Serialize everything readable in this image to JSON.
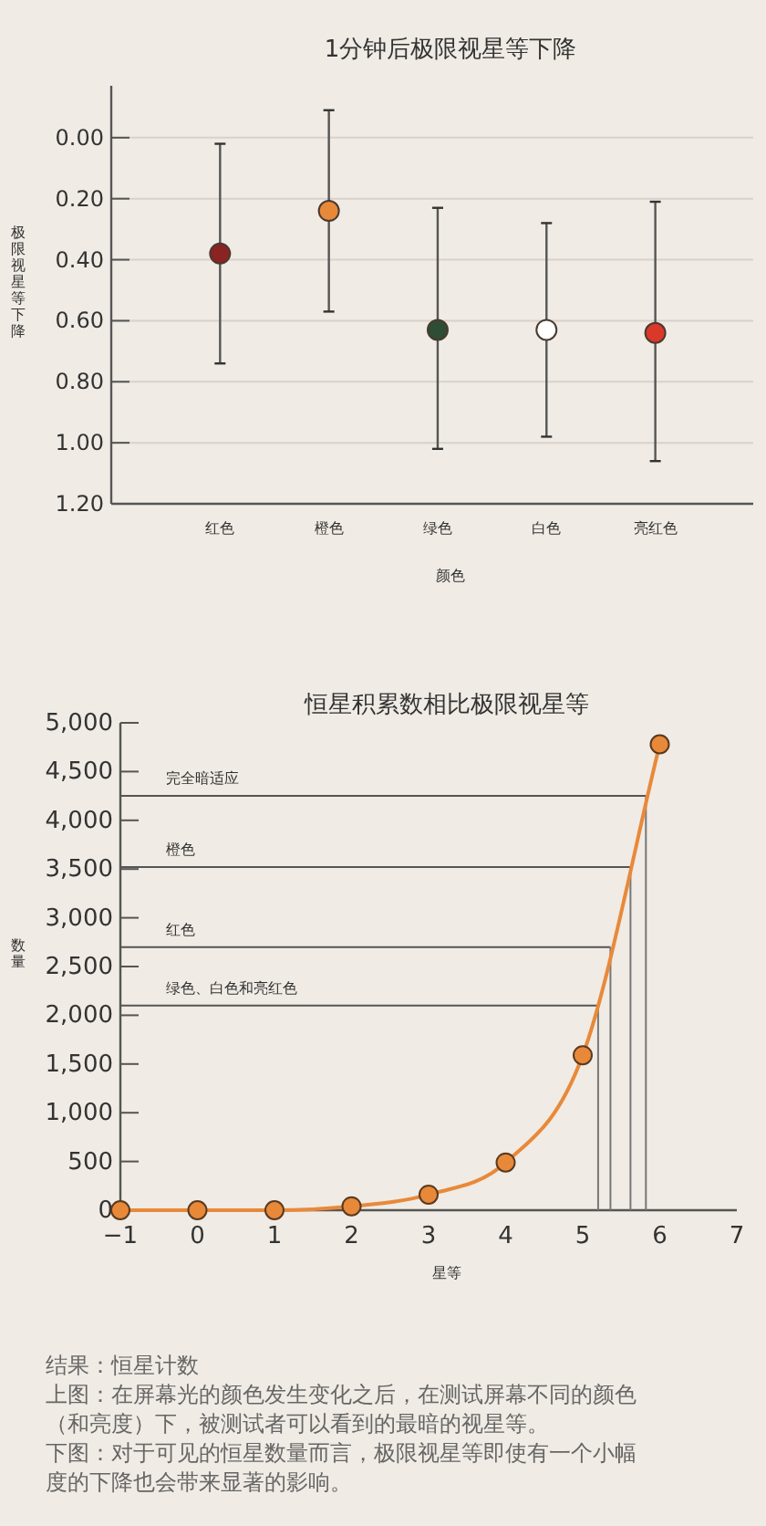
{
  "chart_data": [
    {
      "type": "scatter",
      "title": "1分钟后极限视星等下降",
      "xlabel": "颜色",
      "ylabel": "极限视星等下降",
      "categories": [
        "红色",
        "橙色",
        "绿色",
        "白色",
        "亮红色"
      ],
      "values": [
        0.38,
        0.24,
        0.63,
        0.63,
        0.64
      ],
      "colors": [
        "#8b2323",
        "#e8893a",
        "#2e4d35",
        "#ffffff",
        "#d9382a"
      ],
      "errors": [
        [
          0.02,
          0.74
        ],
        [
          -0.09,
          0.57
        ],
        [
          0.23,
          1.02
        ],
        [
          0.28,
          0.98
        ],
        [
          0.21,
          1.06
        ]
      ],
      "ylim": [
        1.2,
        -0.17
      ],
      "yticks": [
        {
          "value": 0,
          "label": "0.00"
        },
        {
          "value": 0.2,
          "label": "0.20"
        },
        {
          "value": 0.4,
          "label": "0.40"
        },
        {
          "value": 0.6,
          "label": "0.60"
        },
        {
          "value": 0.8,
          "label": "0.80"
        },
        {
          "value": 1.0,
          "label": "1.00"
        },
        {
          "value": 1.2,
          "label": "1.20"
        }
      ],
      "grid": "y"
    },
    {
      "type": "line",
      "title": "恒星积累数相比极限视星等",
      "xlabel": "星等",
      "ylabel": "数量",
      "x": [
        -1,
        0,
        1,
        2,
        3,
        4,
        5,
        6
      ],
      "series": [
        {
          "color": "#e8893a",
          "values": [
            0,
            0,
            0,
            40,
            160,
            490,
            1590,
            4780
          ]
        }
      ],
      "marker": "circle",
      "xlim": [
        -1,
        7
      ],
      "xticks": [
        {
          "value": -1,
          "label": "−1"
        },
        0,
        1,
        2,
        3,
        4,
        5,
        6,
        7
      ],
      "ylim": [
        0,
        5000
      ],
      "yticks": [
        0,
        500,
        {
          "value": 1000,
          "label": "1,000"
        },
        {
          "value": 1500,
          "label": "1,500"
        },
        {
          "value": 2000,
          "label": "2,000"
        },
        {
          "value": 2500,
          "label": "2,500"
        },
        {
          "value": 3000,
          "label": "3,000"
        },
        {
          "value": 3500,
          "label": "3,500"
        },
        {
          "value": 4000,
          "label": "4,000"
        },
        {
          "value": 4500,
          "label": "4,500"
        },
        {
          "value": 5000,
          "label": "5,000"
        }
      ],
      "ref_lines": [
        {
          "axis": "y",
          "value": 4250,
          "label": "完全暗适应"
        },
        {
          "axis": "y",
          "value": 3520,
          "label": "橙色"
        },
        {
          "axis": "y",
          "value": 2700,
          "label": "红色"
        },
        {
          "axis": "y",
          "value": 2100,
          "label": "绿色、白色和亮红色"
        },
        {
          "axis": "x",
          "value": 5.82
        },
        {
          "axis": "x",
          "value": 5.62
        },
        {
          "axis": "x",
          "value": 5.36
        },
        {
          "axis": "x",
          "value": 5.2
        }
      ],
      "annotations": [
        "结果：恒星计数",
        "上图：在屏幕光的颜色发生变化之后，在测试屏幕不同的颜色（和亮度）下，被测试者可以看到的最暗的视星等。",
        "下图：对于可见的恒星数量而言，极限视星等即使有一个小幅度的下降也会带来显著的影响。"
      ]
    }
  ]
}
